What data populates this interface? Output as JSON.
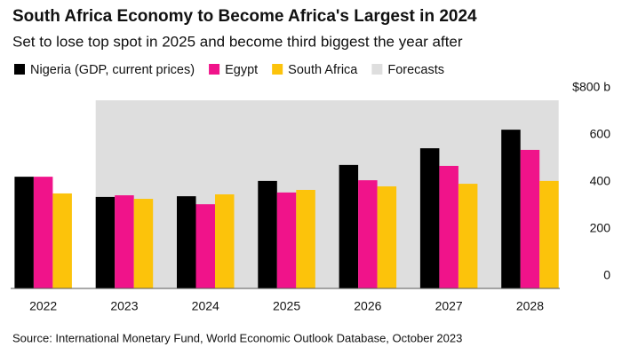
{
  "chart_data": {
    "type": "bar",
    "title": "South Africa Economy to Become Africa's Largest in 2024",
    "subtitle": "Set to lose top spot in 2025 and become third biggest the year after",
    "source": "Source: International Monetary Fund, World Economic Outlook Database, October 2023",
    "categories": [
      "2022",
      "2023",
      "2024",
      "2025",
      "2026",
      "2027",
      "2028"
    ],
    "series": [
      {
        "name": "Nigeria (GDP, current prices)",
        "color": "#000000",
        "values": [
          475,
          389,
          392,
          457,
          525,
          596,
          675
        ]
      },
      {
        "name": "Egypt",
        "color": "#f0138a",
        "values": [
          475,
          396,
          358,
          408,
          460,
          521,
          589
        ]
      },
      {
        "name": "South Africa",
        "color": "#fcc30b",
        "values": [
          404,
          381,
          400,
          419,
          434,
          445,
          457
        ]
      }
    ],
    "forecast": {
      "label": "Forecasts",
      "color": "#dedede",
      "from": "2023"
    },
    "ylim": [
      0,
      800
    ],
    "yticks": [
      0,
      200,
      400,
      600,
      {
        "value": 800,
        "label": "$800 b"
      }
    ],
    "grid": false
  }
}
